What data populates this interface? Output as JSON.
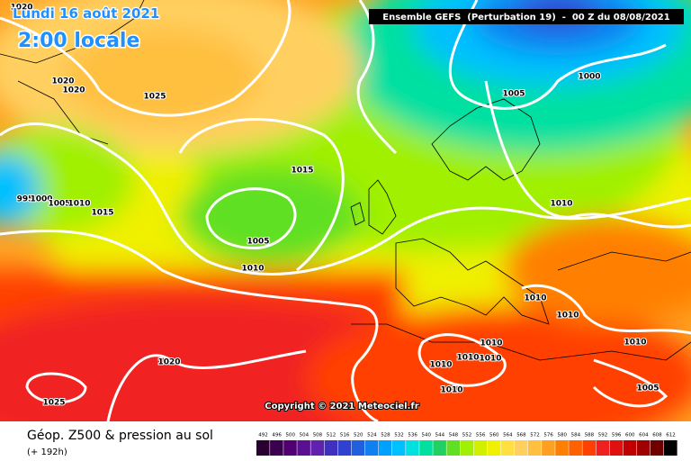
{
  "header": {
    "date": "Lundi 16 août 2021",
    "time": "2:00 locale",
    "model": "Ensemble GEFS  (Perturbation 19)  -  00 Z du 08/08/2021"
  },
  "map": {
    "isobar_labels": [
      1020,
      1020,
      1020,
      1025,
      1015,
      1005,
      1010,
      1005,
      1000,
      1010,
      1010,
      1010,
      1010,
      1010,
      1010,
      1010,
      1010,
      1010,
      1005,
      1020,
      1025,
      995,
      1000,
      1005,
      1010,
      1015
    ],
    "copyright": "Copyright © 2021 Meteociel.fr"
  },
  "footer": {
    "title": "Géop. Z500 & pression au sol",
    "lead": "(+ 192h)"
  },
  "colorbar": {
    "labels": [
      492,
      496,
      500,
      504,
      508,
      512,
      516,
      520,
      524,
      528,
      532,
      536,
      540,
      544,
      548,
      552,
      556,
      560,
      564,
      568,
      572,
      576,
      580,
      584,
      588,
      592,
      596,
      600,
      604,
      608,
      612
    ],
    "colors": [
      "#2a0030",
      "#3c0050",
      "#500070",
      "#5a1090",
      "#6020b0",
      "#4030c0",
      "#3040d0",
      "#2060e0",
      "#1080f0",
      "#00a0ff",
      "#00c0ff",
      "#00e0e0",
      "#00e0a0",
      "#20d060",
      "#60e020",
      "#a0f000",
      "#d0f000",
      "#f0f000",
      "#ffe040",
      "#ffd060",
      "#ffc040",
      "#ffa020",
      "#ff8000",
      "#ff6000",
      "#ff4000",
      "#f02020",
      "#e01010",
      "#c00000",
      "#a00000",
      "#700000",
      "#000000"
    ]
  }
}
